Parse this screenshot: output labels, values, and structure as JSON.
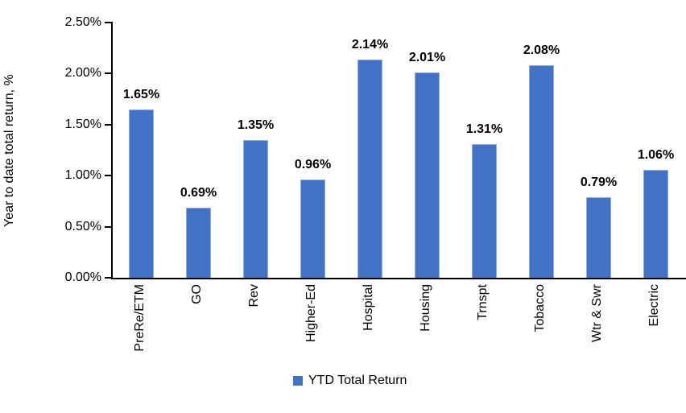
{
  "chart_data": {
    "type": "bar",
    "categories": [
      "PreRe/ETM",
      "GO",
      "Rev",
      "Higher-Ed",
      "Hospital",
      "Housing",
      "Trnspt",
      "Tobacco",
      "Wtr & Swr",
      "Electric"
    ],
    "values": [
      1.65,
      0.69,
      1.35,
      0.96,
      2.14,
      2.01,
      1.31,
      2.08,
      0.79,
      1.06
    ],
    "value_labels": [
      "1.65%",
      "0.69%",
      "1.35%",
      "0.96%",
      "2.14%",
      "2.01%",
      "1.31%",
      "2.08%",
      "0.79%",
      "1.06%"
    ],
    "title": "",
    "xlabel": "",
    "ylabel": "Year to date total return, %",
    "ylim": [
      0,
      2.5
    ],
    "ytick_labels": [
      "0.00%",
      "0.50%",
      "1.00%",
      "1.50%",
      "2.00%",
      "2.50%"
    ],
    "ytick_values": [
      0,
      0.5,
      1.0,
      1.5,
      2.0,
      2.5
    ],
    "grid": false,
    "legend_position": "bottom",
    "legend_label": "YTD Total Return",
    "bar_color": "#4472C4",
    "bar_border_color": "#8FAADC",
    "axis_color": "#000000"
  }
}
